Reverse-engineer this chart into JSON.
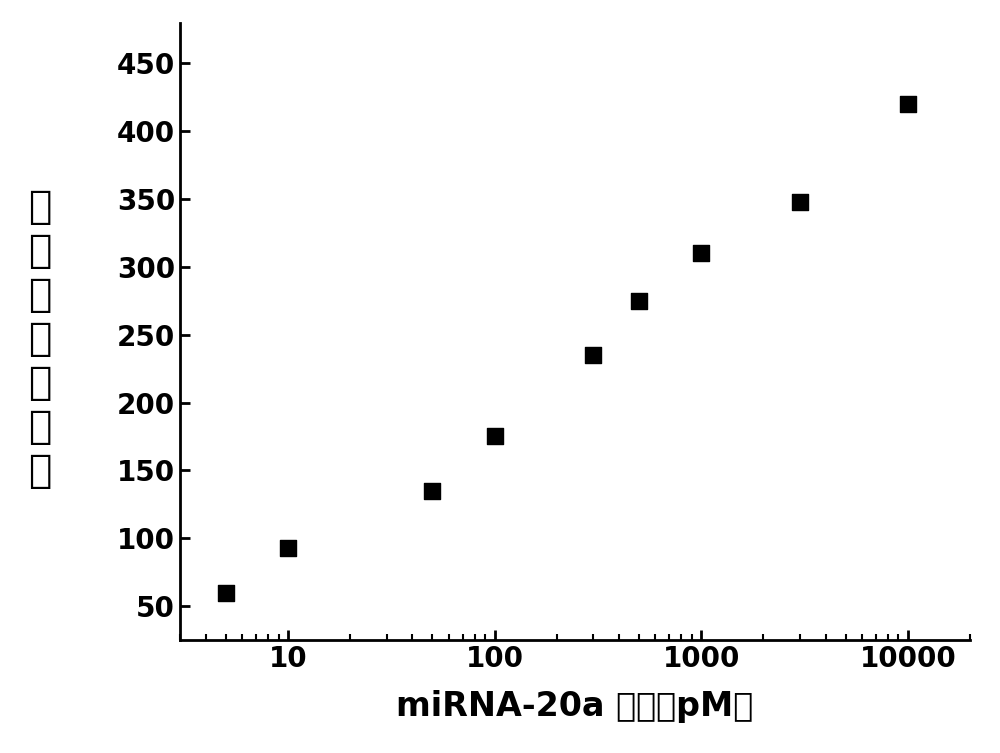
{
  "x_values": [
    5,
    10,
    50,
    100,
    300,
    500,
    1000,
    3000,
    10000
  ],
  "y_values": [
    60,
    93,
    135,
    175,
    235,
    275,
    310,
    348,
    420
  ],
  "xlabel_latin": "miRNA-20a ",
  "xlabel_chinese": "浓度（pM）",
  "ylabel_chars": [
    "电",
    "化",
    "学",
    "发",
    "光",
    "强",
    "度"
  ],
  "xlim": [
    3,
    20000
  ],
  "ylim": [
    25,
    480
  ],
  "yticks": [
    50,
    100,
    150,
    200,
    250,
    300,
    350,
    400,
    450
  ],
  "xticks": [
    10,
    100,
    1000,
    10000
  ],
  "xtick_labels": [
    "10",
    "100",
    "1000",
    "10000"
  ],
  "marker_color": "#000000",
  "marker_size": 130,
  "background_color": "#ffffff",
  "spine_color": "#000000",
  "xlabel_fontsize": 24,
  "ylabel_fontsize": 28,
  "tick_fontsize": 20
}
